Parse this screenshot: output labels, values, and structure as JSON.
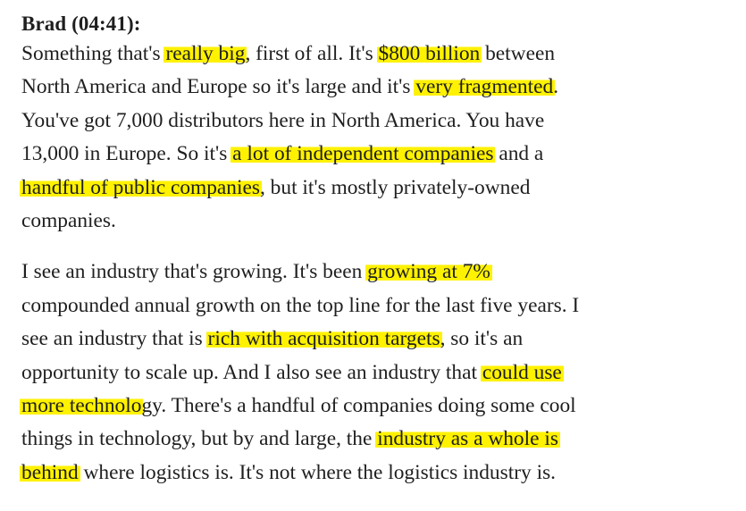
{
  "speaker": "Brad (04:41):",
  "paragraphs": [
    {
      "lines": [
        [
          {
            "text": "Something that's ",
            "hl": false
          },
          {
            "text": "really big",
            "hl": true
          },
          {
            "text": ", first of all. It's ",
            "hl": false
          },
          {
            "text": "$800 billion",
            "hl": true
          },
          {
            "text": " between",
            "hl": false
          }
        ],
        [
          {
            "text": "North America and Europe so it's large and it's ",
            "hl": false
          },
          {
            "text": "very fragmented",
            "hl": true
          },
          {
            "text": ".",
            "hl": false
          }
        ],
        [
          {
            "text": "You've got 7,000 distributors here in North America. You have",
            "hl": false
          }
        ],
        [
          {
            "text": "13,000 in Europe. So it's ",
            "hl": false
          },
          {
            "text": "a lot of independent companies",
            "hl": true
          },
          {
            "text": " and a",
            "hl": false
          }
        ],
        [
          {
            "text": "handful of public companies",
            "hl": true
          },
          {
            "text": ", but it's mostly privately-owned",
            "hl": false
          }
        ],
        [
          {
            "text": "companies.",
            "hl": false
          }
        ]
      ]
    },
    {
      "lines": [
        [
          {
            "text": "I see an industry that's growing. It's been ",
            "hl": false
          },
          {
            "text": "growing at 7%",
            "hl": true
          }
        ],
        [
          {
            "text": "compounded annual growth on the top line for the last five years. I",
            "hl": false
          }
        ],
        [
          {
            "text": "see an industry that is ",
            "hl": false
          },
          {
            "text": "rich with acquisition targets",
            "hl": true
          },
          {
            "text": ", so it's an",
            "hl": false
          }
        ],
        [
          {
            "text": "opportunity to scale up. And I also see an industry that ",
            "hl": false
          },
          {
            "text": "could use",
            "hl": true
          }
        ],
        [
          {
            "text": "more technolo",
            "hl": true
          },
          {
            "text": "gy. There's a handful of companies doing some cool",
            "hl": false
          }
        ],
        [
          {
            "text": "things in technology, but by and large, the ",
            "hl": false
          },
          {
            "text": "industry as a whole is",
            "hl": true
          }
        ],
        [
          {
            "text": "behind",
            "hl": true
          },
          {
            "text": " where logistics is. It's not where the logistics industry is.",
            "hl": false
          }
        ]
      ]
    }
  ]
}
